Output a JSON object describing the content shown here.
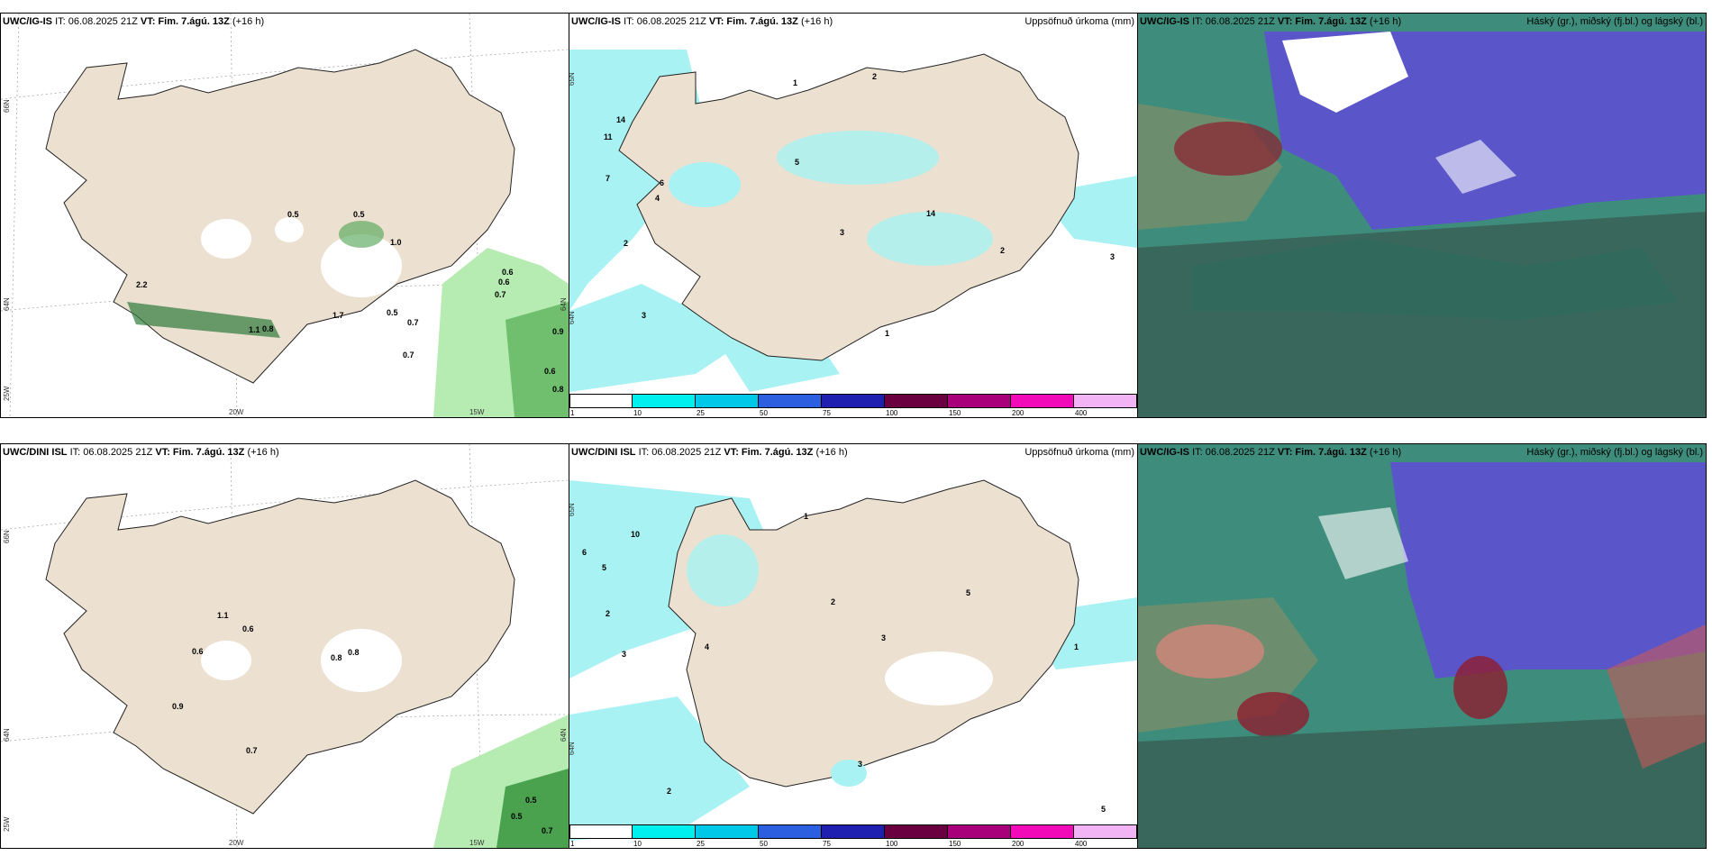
{
  "colors": {
    "land": "#ece0d1",
    "precip_light": "#a8f2f3",
    "sea": "#ffffff",
    "green_light": "#b6ecb2",
    "green_dark": "#2f7b3c",
    "cloud_high": "#5a55c9",
    "cloud_mid": "#3e8d7c",
    "cloud_low": "#3a5e52",
    "cloud_red": "#8e1e2e"
  },
  "rows": [
    {
      "model": "UWC/IG-IS",
      "it": "IT: 06.08.2025 21Z",
      "vt_label": "VT:",
      "vt_value": "Fim. 7.ágú. 13Z",
      "lead": "(+16 h)",
      "wind_values": [
        "0.5",
        "0.5",
        "0.6",
        "0.6",
        "0.7",
        "0.9",
        "0.6",
        "0.8",
        "1.7",
        "0.7",
        "0.7",
        "0.8",
        "2.2",
        "1.1",
        "1.0",
        "0.5"
      ],
      "precip_values": [
        "14",
        "11",
        "7",
        "4",
        "6",
        "2",
        "3",
        "1",
        "2",
        "5",
        "3",
        "14",
        "2",
        "1",
        "3"
      ]
    },
    {
      "model": "UWC/DINI ISL",
      "it": "IT: 06.08.2025 21Z",
      "vt_label": "VT:",
      "vt_value": "Fim. 7.ágú. 13Z",
      "lead": "(+16 h)",
      "wind_values": [
        "1.1",
        "0.6",
        "0.6",
        "0.9",
        "0.8",
        "0.8",
        "0.7",
        "0.5",
        "0.5",
        "0.7"
      ],
      "precip_values": [
        "6",
        "10",
        "5",
        "2",
        "3",
        "1",
        "2",
        "3",
        "4",
        "5",
        "1",
        "2",
        "3",
        "5"
      ]
    }
  ],
  "precip_panel_title": "Uppsöfnuð úrkoma (mm)",
  "cloud_panel_title": "Háský (gr.), miðský (fj.bl.) og lágský (bl.)",
  "cloud_panel_model_top": "UWC/IG-IS",
  "colorbar": {
    "ticks": [
      "1",
      "10",
      "25",
      "50",
      "75",
      "100",
      "150",
      "200",
      "400"
    ],
    "colors": [
      "#ffffff",
      "#00f0f0",
      "#00c8e8",
      "#2c5fe0",
      "#2020b0",
      "#6a0040",
      "#a8007a",
      "#f00ab8",
      "#f2b4f4"
    ]
  },
  "axis_labels": {
    "lat_66": "66N",
    "lat_64": "64N",
    "lat_63": "63N",
    "lon_25": "25W",
    "lon_20": "20W",
    "lon_15": "15W",
    "lat_65": "65N"
  }
}
